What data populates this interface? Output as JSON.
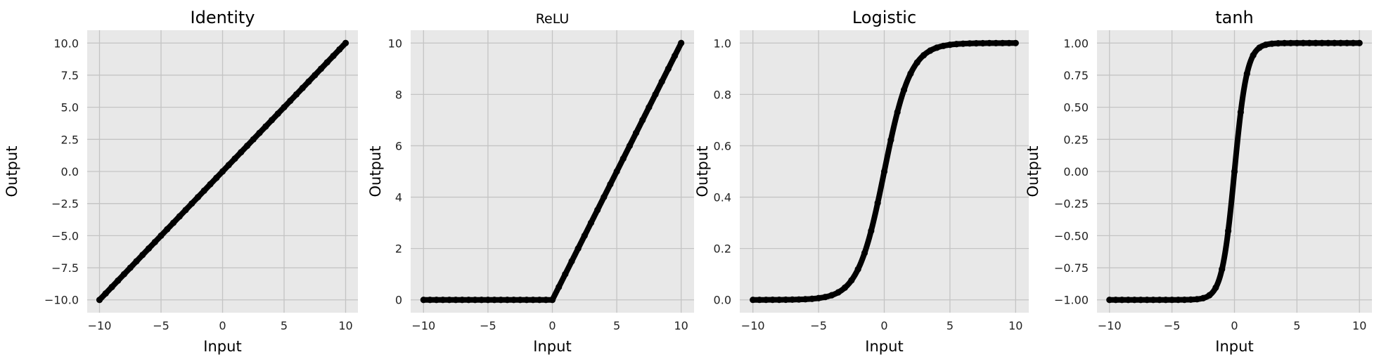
{
  "chart_data": [
    {
      "type": "scatter",
      "title": "Identity",
      "function": "identity",
      "xlabel": "Input",
      "ylabel": "Output",
      "xlim": [
        -11,
        11
      ],
      "ylim": [
        -11,
        11
      ],
      "x_ticks": [
        -10,
        -5,
        0,
        5,
        10
      ],
      "x_tick_labels": [
        "−10",
        "−5",
        "0",
        "5",
        "10"
      ],
      "y_ticks": [
        -10,
        -7.5,
        -5,
        -2.5,
        0,
        2.5,
        5,
        7.5,
        10
      ],
      "y_tick_labels": [
        "−10.0",
        "−7.5",
        "−5.0",
        "−2.5",
        "0.0",
        "2.5",
        "5.0",
        "7.5",
        "10.0"
      ],
      "x_range": [
        -10,
        10
      ],
      "points": [
        [
          -10,
          -10
        ],
        [
          -5,
          -5
        ],
        [
          0,
          0
        ],
        [
          5,
          5
        ],
        [
          10,
          10
        ]
      ],
      "grid": true,
      "marker_color": "#000000"
    },
    {
      "type": "scatter",
      "title": "ReLU",
      "function": "relu",
      "xlabel": "Input",
      "ylabel": "Output",
      "xlim": [
        -11,
        11
      ],
      "ylim": [
        -0.5,
        10.5
      ],
      "x_ticks": [
        -10,
        -5,
        0,
        5,
        10
      ],
      "x_tick_labels": [
        "−10",
        "−5",
        "0",
        "5",
        "10"
      ],
      "y_ticks": [
        0,
        2,
        4,
        6,
        8,
        10
      ],
      "y_tick_labels": [
        "0",
        "2",
        "4",
        "6",
        "8",
        "10"
      ],
      "x_range": [
        -10,
        10
      ],
      "points": [
        [
          -10,
          0
        ],
        [
          -5,
          0
        ],
        [
          0,
          0
        ],
        [
          5,
          5
        ],
        [
          10,
          10
        ]
      ],
      "grid": true,
      "marker_color": "#000000"
    },
    {
      "type": "scatter",
      "title": "Logistic",
      "function": "logistic",
      "xlabel": "Input",
      "ylabel": "Output",
      "xlim": [
        -11,
        11
      ],
      "ylim": [
        -0.05,
        1.05
      ],
      "x_ticks": [
        -10,
        -5,
        0,
        5,
        10
      ],
      "x_tick_labels": [
        "−10",
        "−5",
        "0",
        "5",
        "10"
      ],
      "y_ticks": [
        0,
        0.2,
        0.4,
        0.6,
        0.8,
        1.0
      ],
      "y_tick_labels": [
        "0.0",
        "0.2",
        "0.4",
        "0.6",
        "0.8",
        "1.0"
      ],
      "x_range": [
        -10,
        10
      ],
      "points": [
        [
          -10,
          0.0
        ],
        [
          -5,
          0.007
        ],
        [
          -2,
          0.12
        ],
        [
          0,
          0.5
        ],
        [
          2,
          0.88
        ],
        [
          5,
          0.993
        ],
        [
          10,
          1.0
        ]
      ],
      "grid": true,
      "marker_color": "#000000"
    },
    {
      "type": "scatter",
      "title": "tanh",
      "function": "tanh",
      "xlabel": "Input",
      "ylabel": "Output",
      "xlim": [
        -11,
        11
      ],
      "ylim": [
        -1.1,
        1.1
      ],
      "x_ticks": [
        -10,
        -5,
        0,
        5,
        10
      ],
      "x_tick_labels": [
        "−10",
        "−5",
        "0",
        "5",
        "10"
      ],
      "y_ticks": [
        -1.0,
        -0.75,
        -0.5,
        -0.25,
        0,
        0.25,
        0.5,
        0.75,
        1.0
      ],
      "y_tick_labels": [
        "−1.00",
        "−0.75",
        "−0.50",
        "−0.25",
        "0.00",
        "0.25",
        "0.50",
        "0.75",
        "1.00"
      ],
      "x_range": [
        -10,
        10
      ],
      "points": [
        [
          -10,
          -1.0
        ],
        [
          -3,
          -0.995
        ],
        [
          -1,
          -0.76
        ],
        [
          0,
          0
        ],
        [
          1,
          0.76
        ],
        [
          3,
          0.995
        ],
        [
          10,
          1.0
        ]
      ],
      "grid": true,
      "marker_color": "#000000"
    }
  ]
}
